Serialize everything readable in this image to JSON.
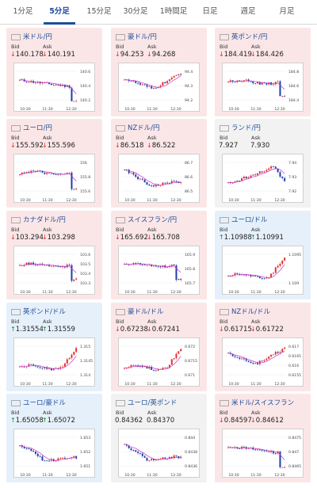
{
  "tabs": [
    {
      "label": "1分足"
    },
    {
      "label": "5分足",
      "active": true
    },
    {
      "label": "15分足"
    },
    {
      "label": "30分足"
    },
    {
      "label": "1時間足"
    },
    {
      "label": "日足"
    },
    {
      "label": "週足"
    },
    {
      "label": "月足"
    }
  ],
  "labels": {
    "bid": "Bid",
    "ask": "Ask"
  },
  "colors": {
    "down_arrow": "#e02a2a",
    "up_arrow": "#1a8a2a",
    "candle_up": "#e03030",
    "candle_down": "#1d3fa8",
    "ma_line": "#cc33cc",
    "active_tab": "#1d4f99"
  },
  "cards": [
    {
      "name": "米ドル/円",
      "flag": "us",
      "dir": "down",
      "bid_arrow": "down",
      "ask_arrow": "down",
      "bid": "140.178",
      "ask": "140.191",
      "ticks": [
        "140.6",
        "140.4",
        "140.2"
      ],
      "x": [
        "10:30",
        "11:30",
        "12:30"
      ],
      "trend": "down-drop"
    },
    {
      "name": "豪ドル/円",
      "flag": "au",
      "dir": "down",
      "bid_arrow": "down",
      "ask_arrow": "down",
      "bid": "94.253",
      "ask": "94.268",
      "ticks": [
        "94.4",
        "94.3",
        "94.2"
      ],
      "x": [
        "10:30",
        "11:30",
        "12:30"
      ],
      "trend": "dip-rise"
    },
    {
      "name": "英ポンド/円",
      "flag": "gb",
      "dir": "down",
      "bid_arrow": "down",
      "ask_arrow": "down",
      "bid": "184.419",
      "ask": "184.426",
      "ticks": [
        "184.8",
        "184.6",
        "184.4"
      ],
      "x": [
        "10:30",
        "11:30",
        "12:30"
      ],
      "trend": "flat-drop"
    },
    {
      "name": "ユーロ/円",
      "flag": "eu",
      "dir": "down",
      "bid_arrow": "down",
      "ask_arrow": "down",
      "bid": "155.592",
      "ask": "155.596",
      "ticks": [
        "156",
        "155.8",
        "155.6"
      ],
      "x": [
        "10:30",
        "11:30",
        "12:30"
      ],
      "trend": "flat-drop"
    },
    {
      "name": "NZドル/円",
      "flag": "nz",
      "dir": "down",
      "bid_arrow": "down",
      "ask_arrow": "down",
      "bid": "86.518",
      "ask": "86.522",
      "ticks": [
        "86.7",
        "86.6",
        "86.5"
      ],
      "x": [
        "10:30",
        "11:30",
        "12:30"
      ],
      "trend": "down-flat"
    },
    {
      "name": "ランド/円",
      "flag": "za",
      "dir": "flat",
      "bid_arrow": "none",
      "ask_arrow": "none",
      "bid": "7.927",
      "ask": "7.930",
      "ticks": [
        "7.94",
        "7.93",
        "7.92"
      ],
      "x": [
        "10:30",
        "11:30",
        "12:30"
      ],
      "trend": "rise-drop"
    },
    {
      "name": "カナダドル/円",
      "flag": "ca",
      "dir": "down",
      "bid_arrow": "down",
      "ask_arrow": "down",
      "bid": "103.294",
      "ask": "103.298",
      "ticks": [
        "103.6",
        "103.5",
        "103.4",
        "103.3"
      ],
      "x": [
        "10:30",
        "11:30",
        "12:30"
      ],
      "trend": "flat-drop"
    },
    {
      "name": "スイスフラン/円",
      "flag": "ch",
      "dir": "down",
      "bid_arrow": "down",
      "ask_arrow": "down",
      "bid": "165.692",
      "ask": "165.708",
      "ticks": [
        "165.9",
        "165.8",
        "165.7"
      ],
      "x": [
        "10:30",
        "11:30",
        "12:30"
      ],
      "trend": "flat-drop"
    },
    {
      "name": "ユーロ/ドル",
      "flag": "eu",
      "dir": "up",
      "bid_arrow": "up",
      "ask_arrow": "up",
      "bid": "1.10988",
      "ask": "1.10991",
      "ticks": [
        "1.1095",
        "1.109"
      ],
      "x": [
        "10:30",
        "11:30",
        "12:30"
      ],
      "trend": "flat-rise"
    },
    {
      "name": "英ポンド/ドル",
      "flag": "gb",
      "dir": "up",
      "bid_arrow": "up",
      "ask_arrow": "up",
      "bid": "1.31554",
      "ask": "1.31559",
      "ticks": [
        "1.315",
        "1.3145",
        "1.314"
      ],
      "x": [
        "10:30",
        "11:30",
        "12:30"
      ],
      "trend": "flat-rise"
    },
    {
      "name": "豪ドル/ドル",
      "flag": "au",
      "dir": "down",
      "bid_arrow": "down",
      "ask_arrow": "down",
      "bid": "0.67238",
      "ask": "0.67241",
      "ticks": [
        "0.672",
        "0.6715",
        "0.671"
      ],
      "x": [
        "10:30",
        "11:30",
        "12:30"
      ],
      "trend": "flat-rise"
    },
    {
      "name": "NZドル/ドル",
      "flag": "nz",
      "dir": "down",
      "bid_arrow": "down",
      "ask_arrow": "down",
      "bid": "0.61715",
      "ask": "0.61722",
      "ticks": [
        "0.617",
        "0.6165",
        "0.616",
        "0.6155"
      ],
      "x": [
        "10:30",
        "11:30",
        "12:30"
      ],
      "trend": "dip-rise"
    },
    {
      "name": "ユーロ/豪ドル",
      "flag": "eu",
      "dir": "up",
      "bid_arrow": "up",
      "ask_arrow": "up",
      "bid": "1.65058",
      "ask": "1.65072",
      "ticks": [
        "1.653",
        "1.652",
        "1.651"
      ],
      "x": [
        "10:30",
        "11:30",
        "12:30"
      ],
      "trend": "down-flat"
    },
    {
      "name": "ユーロ/英ポンド",
      "flag": "eu",
      "dir": "flat",
      "bid_arrow": "none",
      "ask_arrow": "none",
      "bid": "0.84362",
      "ask": "0.84370",
      "ticks": [
        "0.844",
        "0.8438",
        "0.8436"
      ],
      "x": [
        "10:30",
        "11:30",
        "12:30"
      ],
      "trend": "down-flat"
    },
    {
      "name": "米ドル/スイスフラン",
      "flag": "ch",
      "dir": "down",
      "bid_arrow": "down",
      "ask_arrow": "down",
      "bid": "0.84597",
      "ask": "0.84612",
      "ticks": [
        "0.8475",
        "0.847",
        "0.8465"
      ],
      "x": [
        "10:30",
        "11:30",
        "12:30"
      ],
      "trend": "down-drop"
    }
  ]
}
